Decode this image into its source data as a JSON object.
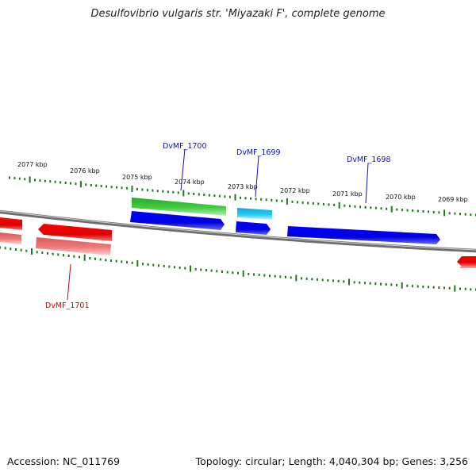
{
  "title": "Desulfovibrio vulgaris str. 'Miyazaki F', complete genome",
  "footer": {
    "accession": "Accession: NC_011769",
    "summary": "Topology: circular; Length: 4,040,304 bp; Genes: 3,256"
  },
  "colors": {
    "backbone": "#7a7a7a",
    "ticks": "#1a7a1a",
    "forward_label": "#1010b0",
    "reverse_label": "#cc0000",
    "blue_cds": "#0000ee",
    "green_gene": "#33bb33",
    "cyan_gene": "#22ccee",
    "red_cds": "#ee0000",
    "pink_gene": "#ee7777"
  },
  "kbp_labels": [
    "2077 kbp",
    "2076 kbp",
    "2075 kbp",
    "2074 kbp",
    "2073 kbp",
    "2072 kbp",
    "2071 kbp",
    "2070 kbp",
    "2069 kbp"
  ],
  "gene_labels": [
    {
      "text": "DvMF_1700",
      "strand": "forward"
    },
    {
      "text": "DvMF_1699",
      "strand": "forward"
    },
    {
      "text": "DvMF_1698",
      "strand": "forward"
    },
    {
      "text": "DvMF_1701",
      "strand": "reverse"
    }
  ]
}
